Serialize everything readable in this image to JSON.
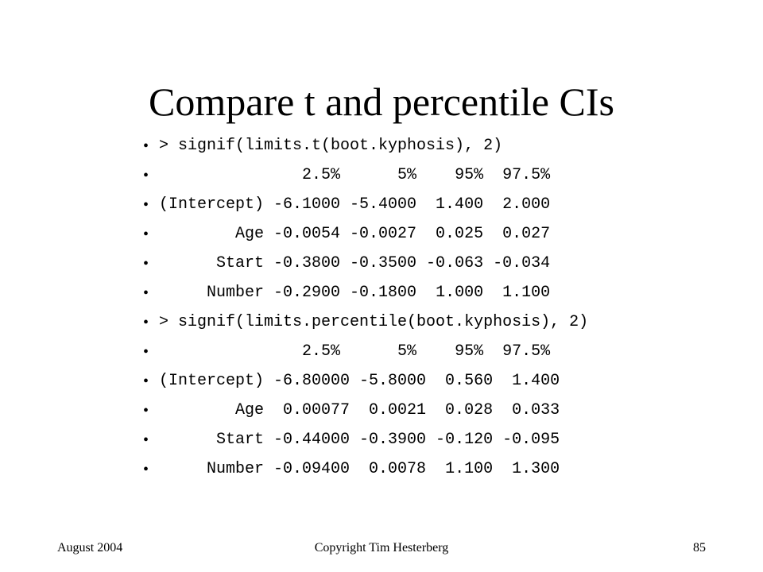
{
  "slide": {
    "title": "Compare t and percentile CIs",
    "bullet_symbol": "•",
    "bullets": [
      "> signif(limits.t(boot.kyphosis), 2)",
      "               2.5%      5%    95%  97.5%",
      "(Intercept) -6.1000 -5.4000  1.400  2.000",
      "        Age -0.0054 -0.0027  0.025  0.027",
      "      Start -0.3800 -0.3500 -0.063 -0.034",
      "     Number -0.2900 -0.1800  1.000  1.100",
      "> signif(limits.percentile(boot.kyphosis), 2)",
      "               2.5%      5%    95%  97.5%",
      "(Intercept) -6.80000 -5.8000  0.560  1.400",
      "        Age  0.00077  0.0021  0.028  0.033",
      "      Start -0.44000 -0.3900 -0.120 -0.095",
      "     Number -0.09400  0.0078  1.100  1.300"
    ]
  },
  "footer": {
    "date": "August 2004",
    "copyright": "Copyright Tim Hesterberg",
    "page_number": "85"
  }
}
